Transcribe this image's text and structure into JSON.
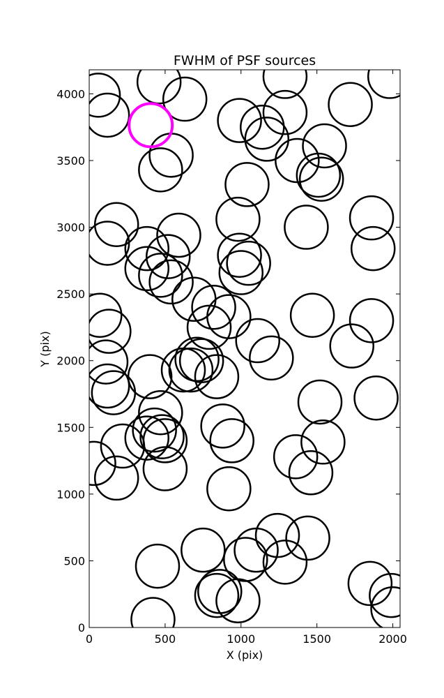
{
  "chart_data": {
    "type": "scatter",
    "title": "FWHM of PSF sources",
    "xlabel": "X (pix)",
    "ylabel": "Y (pix)",
    "xlim": [
      0,
      2048
    ],
    "ylim": [
      0,
      4180
    ],
    "xticks": [
      "0",
      "500",
      "1000",
      "1500",
      "2000"
    ],
    "yticks": [
      "0",
      "500",
      "1000",
      "1500",
      "2000",
      "2500",
      "3000",
      "3500",
      "4000"
    ],
    "grid": false,
    "legend": "none",
    "marker": "open-circle",
    "marker_color": "#000000",
    "highlight_color": "#ff00ff",
    "sources": [
      {
        "x": 60,
        "y": 3990
      },
      {
        "x": 120,
        "y": 3840
      },
      {
        "x": 460,
        "y": 4090
      },
      {
        "x": 630,
        "y": 3960
      },
      {
        "x": 1290,
        "y": 4130
      },
      {
        "x": 1980,
        "y": 4130
      },
      {
        "x": 1720,
        "y": 3920
      },
      {
        "x": 1290,
        "y": 3860
      },
      {
        "x": 990,
        "y": 3800
      },
      {
        "x": 1140,
        "y": 3750
      },
      {
        "x": 1170,
        "y": 3660
      },
      {
        "x": 1370,
        "y": 3500
      },
      {
        "x": 1550,
        "y": 3610
      },
      {
        "x": 1510,
        "y": 3390
      },
      {
        "x": 1530,
        "y": 3360
      },
      {
        "x": 540,
        "y": 3540
      },
      {
        "x": 470,
        "y": 3430
      },
      {
        "x": 1040,
        "y": 3320
      },
      {
        "x": 180,
        "y": 3020
      },
      {
        "x": 120,
        "y": 2880
      },
      {
        "x": 980,
        "y": 3060
      },
      {
        "x": 1430,
        "y": 3000
      },
      {
        "x": 1860,
        "y": 3070
      },
      {
        "x": 1870,
        "y": 2840
      },
      {
        "x": 590,
        "y": 2940
      },
      {
        "x": 380,
        "y": 2840
      },
      {
        "x": 520,
        "y": 2780
      },
      {
        "x": 990,
        "y": 2790
      },
      {
        "x": 1050,
        "y": 2730
      },
      {
        "x": 1000,
        "y": 2660
      },
      {
        "x": 380,
        "y": 2690
      },
      {
        "x": 470,
        "y": 2640
      },
      {
        "x": 540,
        "y": 2590
      },
      {
        "x": 690,
        "y": 2460
      },
      {
        "x": 820,
        "y": 2400
      },
      {
        "x": 920,
        "y": 2330
      },
      {
        "x": 790,
        "y": 2250
      },
      {
        "x": 70,
        "y": 2340
      },
      {
        "x": 130,
        "y": 2220
      },
      {
        "x": 1470,
        "y": 2340
      },
      {
        "x": 1860,
        "y": 2300
      },
      {
        "x": 1730,
        "y": 2110
      },
      {
        "x": 1110,
        "y": 2150
      },
      {
        "x": 1200,
        "y": 2020
      },
      {
        "x": 710,
        "y": 2010
      },
      {
        "x": 740,
        "y": 2000
      },
      {
        "x": 620,
        "y": 1930
      },
      {
        "x": 670,
        "y": 1930
      },
      {
        "x": 840,
        "y": 1880
      },
      {
        "x": 400,
        "y": 1880
      },
      {
        "x": 110,
        "y": 1990
      },
      {
        "x": 120,
        "y": 1810
      },
      {
        "x": 160,
        "y": 1760
      },
      {
        "x": 470,
        "y": 1610
      },
      {
        "x": 430,
        "y": 1480
      },
      {
        "x": 380,
        "y": 1420
      },
      {
        "x": 480,
        "y": 1430
      },
      {
        "x": 500,
        "y": 1400
      },
      {
        "x": 880,
        "y": 1510
      },
      {
        "x": 940,
        "y": 1400
      },
      {
        "x": 1520,
        "y": 1690
      },
      {
        "x": 1890,
        "y": 1720
      },
      {
        "x": 1540,
        "y": 1390
      },
      {
        "x": 1360,
        "y": 1280
      },
      {
        "x": 1460,
        "y": 1160
      },
      {
        "x": 220,
        "y": 1360
      },
      {
        "x": 30,
        "y": 1230
      },
      {
        "x": 180,
        "y": 1120
      },
      {
        "x": 500,
        "y": 1190
      },
      {
        "x": 920,
        "y": 1040
      },
      {
        "x": 750,
        "y": 580
      },
      {
        "x": 1240,
        "y": 690
      },
      {
        "x": 1440,
        "y": 670
      },
      {
        "x": 1100,
        "y": 580
      },
      {
        "x": 1030,
        "y": 510
      },
      {
        "x": 1290,
        "y": 490
      },
      {
        "x": 450,
        "y": 460
      },
      {
        "x": 860,
        "y": 270
      },
      {
        "x": 840,
        "y": 240
      },
      {
        "x": 980,
        "y": 200
      },
      {
        "x": 420,
        "y": 60
      },
      {
        "x": 1850,
        "y": 330
      },
      {
        "x": 1990,
        "y": 240
      },
      {
        "x": 2000,
        "y": 140
      }
    ],
    "highlighted_source": {
      "x": 405,
      "y": 3765
    }
  }
}
